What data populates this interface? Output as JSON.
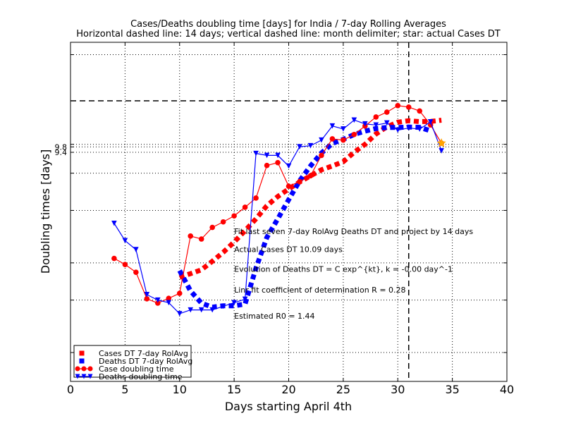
{
  "chart_data": {
    "type": "line",
    "title": "Cases/Deaths doubling time [days] for India / 7-day Rolling Averages",
    "subtitle": "Horizontal dashed line: 14 days; vertical dashed line: month delimiter; star: actual Cases DT",
    "xlabel": "Days starting April 4th",
    "ylabel": "Doubling times [days]",
    "xlim": [
      0,
      40
    ],
    "xticks": [
      0,
      5,
      10,
      15,
      20,
      25,
      30,
      35,
      40
    ],
    "ytick_labels": [
      "9.8",
      "9.4"
    ],
    "ytick_values": [
      9.8,
      9.4
    ],
    "log_y": true,
    "ylim": [
      1.6,
      22
    ],
    "grid": true,
    "legend_position": "lower-left",
    "hline": 14,
    "vline": 31,
    "star": {
      "x": 34,
      "y": 10.09,
      "color": "#ffa500"
    },
    "annotations": [
      {
        "text": "Fit last seven 7-day RolAvg Deaths DT and project by 14 days",
        "x": 15,
        "y": 5.0
      },
      {
        "text": "Actual Cases DT 10.09 days",
        "x": 15,
        "y": 4.35
      },
      {
        "text": "Evolution of Deaths DT = C exp^{kt}, k = -0.00 day^-1",
        "x": 15,
        "y": 3.73
      },
      {
        "text": "Linr fit coefficient of determination R = 0.28",
        "x": 15,
        "y": 3.18
      },
      {
        "text": "Estimated R0 = 1.44",
        "x": 15,
        "y": 2.6
      }
    ],
    "series": [
      {
        "name": "Cases DT 7-day RolAvg",
        "style": "dotted-squares",
        "color": "#ff0000",
        "x": [
          10,
          11,
          12,
          13,
          14,
          15,
          16,
          17,
          18,
          19,
          20,
          21,
          22,
          23,
          24,
          25,
          26,
          27,
          28,
          29,
          30,
          31,
          32,
          33,
          34
        ],
        "y": [
          3.58,
          3.68,
          3.79,
          4.05,
          4.34,
          4.7,
          5.13,
          5.62,
          6.22,
          6.68,
          7.08,
          7.47,
          7.84,
          8.21,
          8.46,
          8.74,
          9.4,
          10.0,
          10.83,
          11.45,
          11.86,
          12.0,
          11.92,
          11.93,
          12.05
        ]
      },
      {
        "name": "Deaths DT 7-day RolAvg",
        "style": "dotted-squares",
        "color": "#0000ff",
        "x": [
          10,
          11,
          12,
          13,
          14,
          15,
          16,
          17,
          18,
          19,
          20,
          21,
          22,
          23,
          24,
          25,
          26,
          27,
          28,
          29,
          30,
          31,
          32,
          33
        ],
        "y": [
          3.77,
          3.22,
          2.93,
          2.84,
          2.87,
          2.87,
          2.91,
          3.84,
          4.87,
          5.62,
          6.52,
          7.54,
          8.46,
          9.35,
          10.07,
          10.39,
          10.79,
          11.07,
          11.3,
          11.39,
          11.39,
          11.43,
          11.4,
          11.1
        ]
      },
      {
        "name": "Case doubling time",
        "style": "line-circles",
        "color": "#ff0000",
        "x": [
          4,
          5,
          6,
          7,
          8,
          9,
          10,
          11,
          12,
          13,
          14,
          15,
          16,
          17,
          18,
          19,
          20,
          21,
          22,
          23,
          24,
          25,
          26,
          27,
          28,
          29,
          30,
          31,
          32,
          33,
          34
        ],
        "y": [
          4.14,
          3.95,
          3.72,
          3.03,
          2.93,
          3.04,
          3.16,
          4.92,
          4.81,
          5.26,
          5.49,
          5.75,
          6.15,
          6.6,
          8.49,
          8.68,
          7.23,
          7.49,
          7.84,
          9.18,
          10.43,
          10.33,
          10.79,
          11.52,
          12.35,
          12.82,
          13.49,
          13.33,
          12.94,
          11.62,
          10.09
        ]
      },
      {
        "name": "Deaths doubling time",
        "style": "line-triangles",
        "color": "#0000ff",
        "x": [
          4,
          5,
          6,
          7,
          8,
          9,
          10,
          11,
          12,
          13,
          14,
          15,
          16,
          17,
          18,
          19,
          20,
          21,
          22,
          23,
          24,
          25,
          26,
          27,
          28,
          29,
          30,
          31,
          32,
          33,
          34
        ],
        "y": [
          5.43,
          4.75,
          4.43,
          3.13,
          3.0,
          2.94,
          2.7,
          2.78,
          2.78,
          2.78,
          2.86,
          2.94,
          3.02,
          9.32,
          9.18,
          9.18,
          8.45,
          9.81,
          9.89,
          10.33,
          11.52,
          11.26,
          12.06,
          11.71,
          11.61,
          11.79,
          11.16,
          11.35,
          11.24,
          11.9,
          9.51
        ]
      }
    ]
  }
}
